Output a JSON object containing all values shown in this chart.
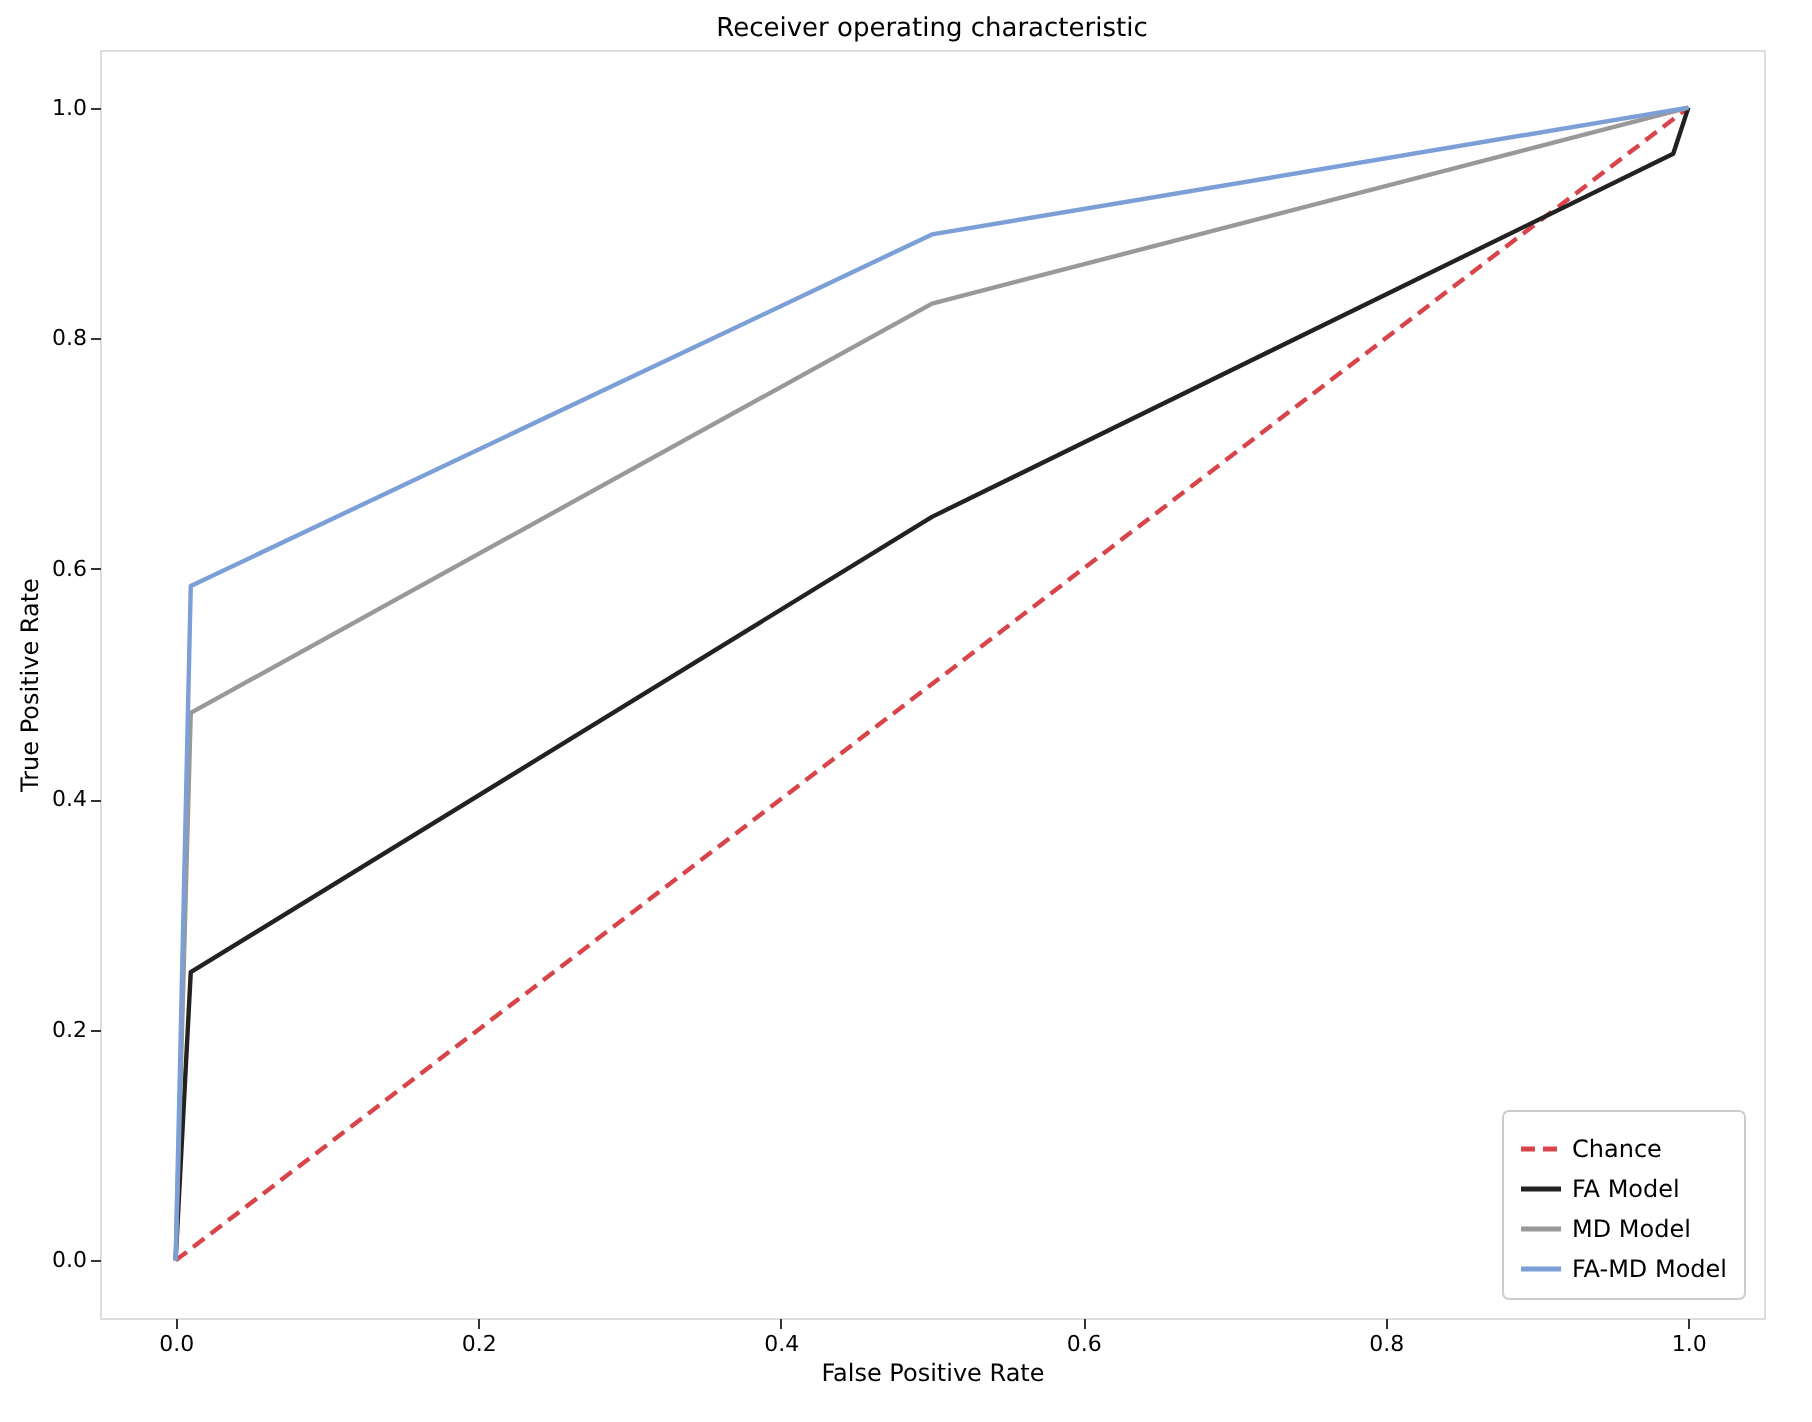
{
  "chart_data": {
    "type": "line",
    "title": "Receiver operating characteristic",
    "xlabel": "False Positive Rate",
    "ylabel": "True Positive Rate",
    "xlim": [
      -0.05,
      1.05
    ],
    "ylim": [
      -0.05,
      1.05
    ],
    "xticks": [
      {
        "value": 0,
        "label": "0.0"
      },
      0.2,
      0.4,
      0.6,
      0.8,
      {
        "value": 1,
        "label": "1.0"
      }
    ],
    "yticks": [
      {
        "value": 0,
        "label": "0.0"
      },
      0.2,
      0.4,
      0.6,
      0.8,
      {
        "value": 1,
        "label": "1.0"
      }
    ],
    "grid": false,
    "legend": "bottom right",
    "marker": "none",
    "series": [
      {
        "name": "Chance",
        "color": "#d9444a",
        "line_style": "dashed",
        "x": [
          0,
          1
        ],
        "values": [
          0,
          1
        ]
      },
      {
        "name": "FA Model",
        "color": "#222222",
        "line_style": "solid",
        "x": [
          0,
          0.01,
          0.5,
          0.99,
          1
        ],
        "values": [
          0,
          0.25,
          0.645,
          0.96,
          1
        ]
      },
      {
        "name": "MD Model",
        "color": "#999999",
        "line_style": "solid",
        "x": [
          0,
          0.01,
          0.5,
          1
        ],
        "values": [
          0,
          0.475,
          0.83,
          1
        ]
      },
      {
        "name": "FA-MD Model",
        "color": "#7b9fd6",
        "line_style": "solid",
        "x": [
          0,
          0.01,
          0.5,
          1
        ],
        "values": [
          0,
          0.585,
          0.89,
          1
        ]
      }
    ]
  }
}
